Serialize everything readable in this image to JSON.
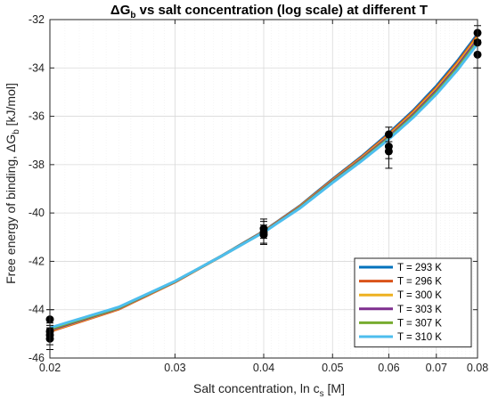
{
  "chart_data": {
    "type": "line",
    "title": "ΔG_b vs salt concentration (log scale) at different T",
    "xlabel": "Salt concentration, ln c_s [M]",
    "ylabel": "Free energy of binding, ΔG_b [kJ/mol]",
    "x_scale": "log",
    "xlim": [
      0.02,
      0.08
    ],
    "ylim": [
      -46,
      -32
    ],
    "xticks": [
      0.02,
      0.03,
      0.04,
      0.05,
      0.06,
      0.07,
      0.08
    ],
    "xtick_labels": [
      "0.02",
      "0.03",
      "0.04",
      "0.05",
      "0.06",
      "0.07",
      "0.08"
    ],
    "yticks": [
      -46,
      -44,
      -42,
      -40,
      -38,
      -36,
      -34,
      -32
    ],
    "ytick_labels": [
      "-46",
      "-44",
      "-42",
      "-40",
      "-38",
      "-36",
      "-34",
      "-32"
    ],
    "grid": true,
    "legend_position": "bottom-right",
    "x": [
      0.02,
      0.025,
      0.03,
      0.035,
      0.04,
      0.045,
      0.05,
      0.055,
      0.06,
      0.065,
      0.07,
      0.075,
      0.08
    ],
    "series": [
      {
        "name": "T = 293 K",
        "color": "#0072BD",
        "values": [
          -44.85,
          -43.95,
          -42.85,
          -41.75,
          -40.75,
          -39.7,
          -38.6,
          -37.65,
          -36.7,
          -35.75,
          -34.75,
          -33.7,
          -32.6
        ]
      },
      {
        "name": "T = 296 K",
        "color": "#D95319",
        "values": [
          -44.9,
          -43.98,
          -42.86,
          -41.76,
          -40.76,
          -39.72,
          -38.63,
          -37.68,
          -36.75,
          -35.8,
          -34.82,
          -33.77,
          -32.67
        ]
      },
      {
        "name": "T = 300 K",
        "color": "#EDB120",
        "values": [
          -44.87,
          -43.96,
          -42.85,
          -41.76,
          -40.77,
          -39.74,
          -38.66,
          -37.72,
          -36.8,
          -35.86,
          -34.88,
          -33.84,
          -32.75
        ]
      },
      {
        "name": "T = 303 K",
        "color": "#7E2F8E",
        "values": [
          -44.84,
          -43.94,
          -42.84,
          -41.76,
          -40.78,
          -39.76,
          -38.69,
          -37.76,
          -36.85,
          -35.92,
          -34.95,
          -33.92,
          -32.83
        ]
      },
      {
        "name": "T = 307 K",
        "color": "#77AC30",
        "values": [
          -44.8,
          -43.92,
          -42.83,
          -41.76,
          -40.79,
          -39.78,
          -38.72,
          -37.8,
          -36.9,
          -35.98,
          -35.02,
          -34.0,
          -32.92
        ]
      },
      {
        "name": "T = 310 K",
        "color": "#4DBEEE",
        "values": [
          -44.75,
          -43.89,
          -42.82,
          -41.76,
          -40.8,
          -39.8,
          -38.75,
          -37.84,
          -36.95,
          -36.04,
          -35.09,
          -34.08,
          -33.0
        ]
      }
    ],
    "data_points": [
      {
        "x": 0.02,
        "y": -44.4,
        "err": 0.4
      },
      {
        "x": 0.02,
        "y": -44.9,
        "err": 0.35
      },
      {
        "x": 0.02,
        "y": -45.05,
        "err": 0.4
      },
      {
        "x": 0.02,
        "y": -45.2,
        "err": 0.45
      },
      {
        "x": 0.04,
        "y": -40.65,
        "err": 0.4
      },
      {
        "x": 0.04,
        "y": -40.8,
        "err": 0.45
      },
      {
        "x": 0.04,
        "y": -40.9,
        "err": 0.4
      },
      {
        "x": 0.06,
        "y": -36.75,
        "err": 0.3
      },
      {
        "x": 0.06,
        "y": -37.25,
        "err": 0.5
      },
      {
        "x": 0.06,
        "y": -37.45,
        "err": 0.7
      },
      {
        "x": 0.08,
        "y": -32.55,
        "err": 0.3
      },
      {
        "x": 0.08,
        "y": -32.95,
        "err": 0.45
      },
      {
        "x": 0.08,
        "y": -33.45,
        "err": 0.55
      }
    ]
  }
}
